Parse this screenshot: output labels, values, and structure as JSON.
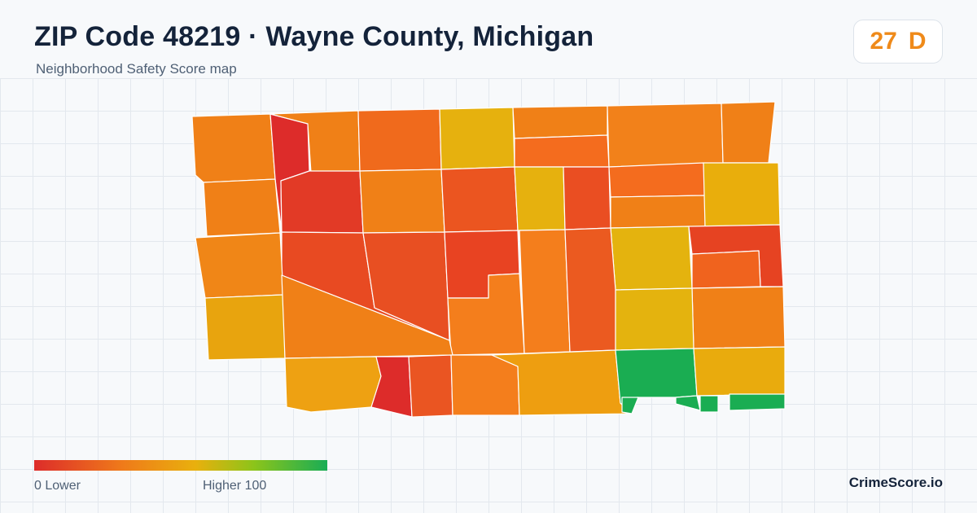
{
  "header": {
    "title": "ZIP Code 48219 · Wayne County, Michigan",
    "subtitle": "Neighborhood Safety Score map"
  },
  "score_badge": {
    "score": "27",
    "grade": "D",
    "color": "#ef8a1a"
  },
  "legend": {
    "min_label": "0  Lower",
    "max_label": "Higher  100",
    "colors": [
      "#dd2c2a",
      "#ef7a1a",
      "#e9b00d",
      "#8cc41a",
      "#19ad55"
    ]
  },
  "brand": "CrimeScore.io",
  "map": {
    "tracts": [
      {
        "id": 1,
        "color": "#f08017"
      },
      {
        "id": 2,
        "color": "#dd2c2a"
      },
      {
        "id": 3,
        "color": "#f08017"
      },
      {
        "id": 4,
        "color": "#f06a1c"
      },
      {
        "id": 5,
        "color": "#e6b10e"
      },
      {
        "id": 6,
        "color": "#f08017"
      },
      {
        "id": 7,
        "color": "#f46c1e"
      },
      {
        "id": 8,
        "color": "#f2811a"
      },
      {
        "id": 9,
        "color": "#f08017"
      },
      {
        "id": 10,
        "color": "#f08017"
      },
      {
        "id": 11,
        "color": "#e23a26"
      },
      {
        "id": 12,
        "color": "#f08017"
      },
      {
        "id": 13,
        "color": "#eb5520"
      },
      {
        "id": 14,
        "color": "#e6b10e"
      },
      {
        "id": 15,
        "color": "#ea4e22"
      },
      {
        "id": 16,
        "color": "#f46c1e"
      },
      {
        "id": 17,
        "color": "#f08017"
      },
      {
        "id": 18,
        "color": "#e9ae0c"
      },
      {
        "id": 19,
        "color": "#e84a22"
      },
      {
        "id": 20,
        "color": "#e84f22"
      },
      {
        "id": 21,
        "color": "#e84322"
      },
      {
        "id": 22,
        "color": "#f47e1c"
      },
      {
        "id": 23,
        "color": "#f47e1c"
      },
      {
        "id": 24,
        "color": "#e4b30e"
      },
      {
        "id": 25,
        "color": "#e64322"
      },
      {
        "id": 26,
        "color": "#f0631e"
      },
      {
        "id": 27,
        "color": "#eb5a20"
      },
      {
        "id": 28,
        "color": "#f08017"
      },
      {
        "id": 29,
        "color": "#e4b30e"
      },
      {
        "id": 30,
        "color": "#f08617"
      },
      {
        "id": 31,
        "color": "#e8a40e"
      },
      {
        "id": 32,
        "color": "#f08017"
      },
      {
        "id": 33,
        "color": "#eea112"
      },
      {
        "id": 34,
        "color": "#dd2c2a"
      },
      {
        "id": 35,
        "color": "#ea5522"
      },
      {
        "id": 36,
        "color": "#f47e1c"
      },
      {
        "id": 37,
        "color": "#ee9e10"
      },
      {
        "id": 38,
        "color": "#1aad52"
      },
      {
        "id": 39,
        "color": "#1aad52"
      },
      {
        "id": 40,
        "color": "#e9ab0d"
      }
    ]
  }
}
